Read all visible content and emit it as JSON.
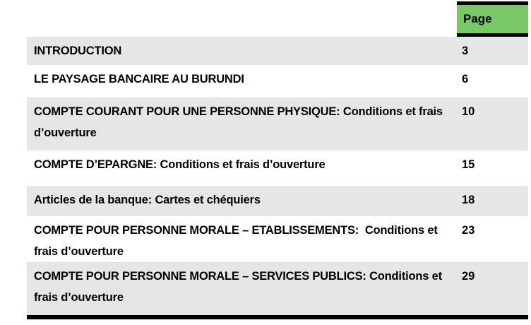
{
  "colors": {
    "header_green": "#78C865",
    "row_shaded_gray": "#E7E6E6",
    "border_black": "#000000",
    "text": "#000000",
    "page_background": "#ffffff"
  },
  "table": {
    "header": {
      "page_label": "Page"
    },
    "rows": [
      {
        "lines": [
          "INTRODUCTION"
        ],
        "page": "3"
      },
      {
        "lines": [
          "LE PAYSAGE BANCAIRE AU BURUNDI"
        ],
        "page": "6"
      },
      {
        "lines": [
          "COMPTE COURANT POUR UNE PERSONNE PHYSIQUE: Conditions et frais",
          "d’ouverture"
        ],
        "page": "10"
      },
      {
        "lines": [
          "COMPTE D’EPARGNE: Conditions et frais d’ouverture"
        ],
        "page": "15"
      },
      {
        "lines": [
          "Articles de la banque: Cartes et chéquiers"
        ],
        "page": "18"
      },
      {
        "lines": [
          "COMPTE POUR PERSONNE MORALE – ETABLISSEMENTS:  Conditions et",
          "frais d’ouverture"
        ],
        "page": "23"
      },
      {
        "lines": [
          "COMPTE POUR PERSONNE MORALE – SERVICES PUBLICS: Conditions et",
          "frais d’ouverture"
        ],
        "page": "29"
      }
    ]
  }
}
